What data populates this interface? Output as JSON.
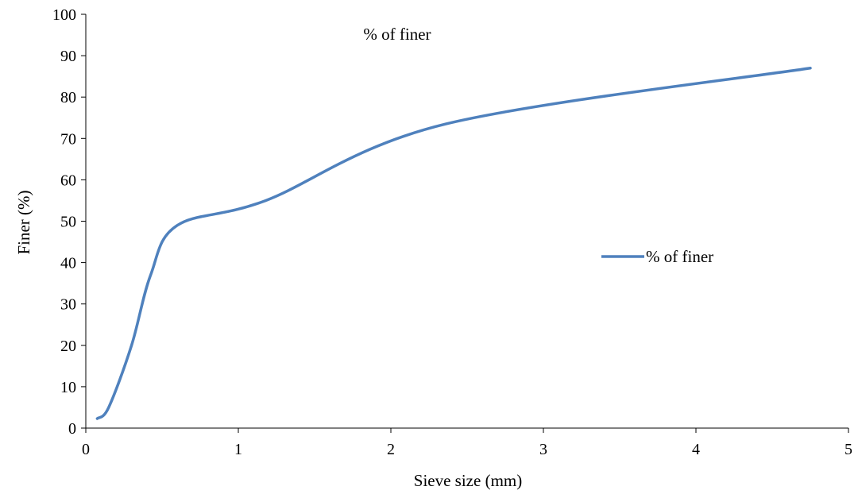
{
  "chart_data": {
    "type": "line",
    "title": "% of  finer",
    "xlabel": "Sieve size (mm)",
    "ylabel": "Finer (%)",
    "xlim": [
      0,
      5
    ],
    "ylim": [
      0,
      100
    ],
    "x_ticks": [
      0,
      1,
      2,
      3,
      4,
      5
    ],
    "y_ticks": [
      0,
      10,
      20,
      30,
      40,
      50,
      60,
      70,
      80,
      90,
      100
    ],
    "grid": false,
    "legend_position": "right",
    "series": [
      {
        "name": "% of  finer",
        "color": "#4F81BD",
        "x": [
          0.075,
          0.15,
          0.3,
          0.425,
          0.6,
          1.18,
          2.36,
          4.75
        ],
        "y": [
          2.3,
          5.0,
          20.0,
          37.0,
          49.0,
          55.0,
          73.5,
          87.0
        ]
      }
    ]
  }
}
